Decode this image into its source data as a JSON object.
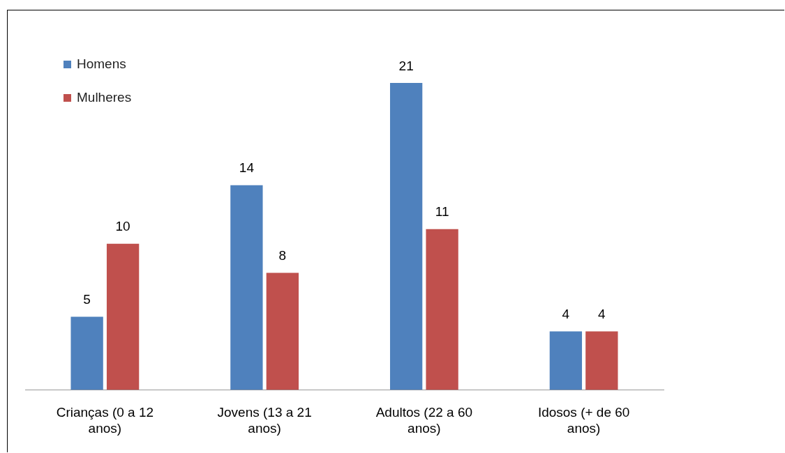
{
  "chart_data": {
    "type": "bar",
    "categories": [
      "Crianças (0 a 12 anos)",
      "Jovens (13 a 21 anos)",
      "Adultos (22 a 60 anos)",
      "Idosos (+ de 60 anos)"
    ],
    "series": [
      {
        "name": "Homens",
        "color": "#4f81bd",
        "values": [
          5,
          14,
          21,
          4
        ]
      },
      {
        "name": "Mulheres",
        "color": "#c0504d",
        "values": [
          10,
          8,
          11,
          4
        ]
      }
    ],
    "data_labels": true,
    "legend": "top left",
    "grid": false,
    "tick_labels": "x"
  }
}
